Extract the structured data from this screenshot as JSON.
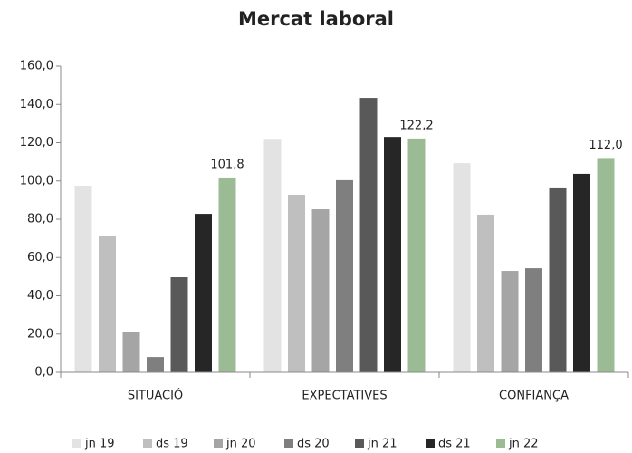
{
  "chart_data": {
    "type": "bar",
    "title": "Mercat laboral",
    "categories": [
      "SITUACIÓ",
      "EXPECTATIVES",
      "CONFIANÇA"
    ],
    "series": [
      {
        "name": "jn 19",
        "color": "#e3e3e3",
        "values": [
          97.5,
          122.0,
          109.3
        ]
      },
      {
        "name": "ds 19",
        "color": "#bfbfbf",
        "values": [
          71.0,
          92.8,
          82.4
        ]
      },
      {
        "name": "jn 20",
        "color": "#a5a5a5",
        "values": [
          21.3,
          85.2,
          53.0
        ]
      },
      {
        "name": "ds 20",
        "color": "#7f7f7f",
        "values": [
          8.0,
          100.4,
          54.4
        ]
      },
      {
        "name": "jn 21",
        "color": "#595959",
        "values": [
          49.7,
          143.4,
          96.6
        ]
      },
      {
        "name": "ds 21",
        "color": "#262626",
        "values": [
          82.8,
          123.0,
          103.7
        ]
      },
      {
        "name": "jn 22",
        "color": "#9bbb94",
        "values": [
          101.8,
          122.2,
          112.0
        ],
        "value_labels": [
          "101,8",
          "122,2",
          "112,0"
        ]
      }
    ],
    "ylim": [
      0,
      160
    ],
    "yticks": [
      {
        "value": 0,
        "label": "0,0"
      },
      {
        "value": 20,
        "label": "20,0"
      },
      {
        "value": 40,
        "label": "40,0"
      },
      {
        "value": 60,
        "label": "60,0"
      },
      {
        "value": 80,
        "label": "80,0"
      },
      {
        "value": 100,
        "label": "100,0"
      },
      {
        "value": 120,
        "label": "120,0"
      },
      {
        "value": 140,
        "label": "140,0"
      },
      {
        "value": 160,
        "label": "160,0"
      }
    ],
    "grid": false,
    "legend": "bottom"
  }
}
